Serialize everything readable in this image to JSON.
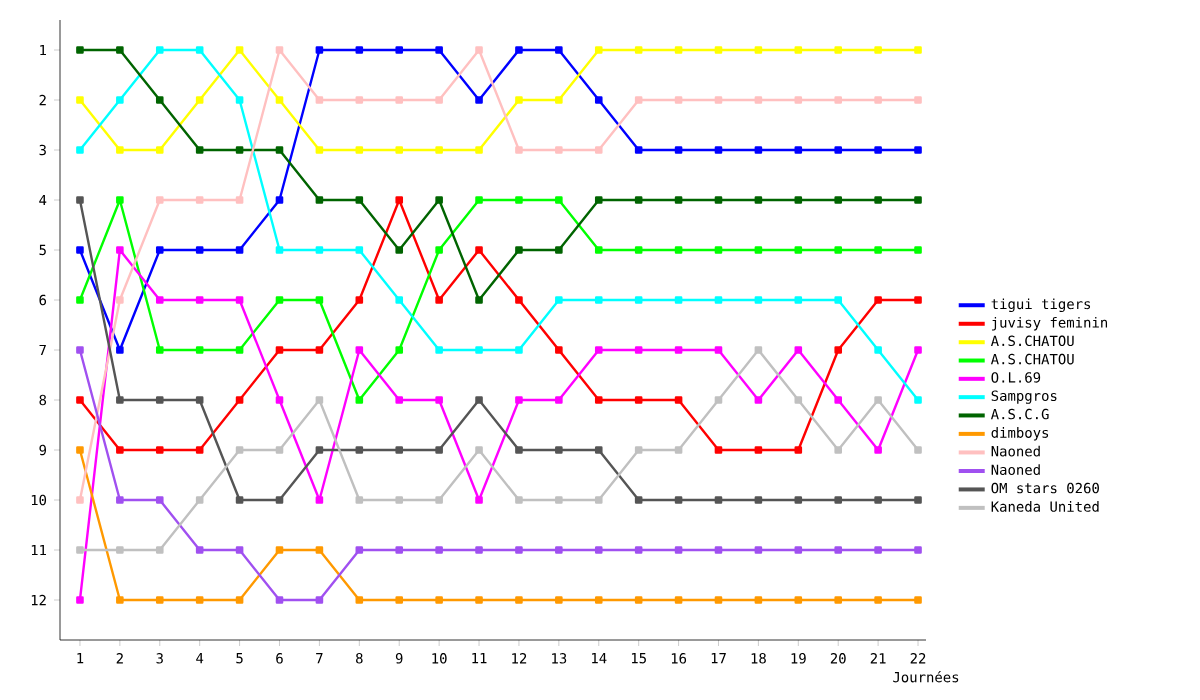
{
  "chart_data": {
    "type": "line",
    "xlabel": "Journées",
    "x": [
      1,
      2,
      3,
      4,
      5,
      6,
      7,
      8,
      9,
      10,
      11,
      12,
      13,
      14,
      15,
      16,
      17,
      18,
      19,
      20,
      21,
      22
    ],
    "xlim": [
      0.5,
      22.2
    ],
    "ylim": [
      12.8,
      0.4
    ],
    "xticks": [
      1,
      2,
      3,
      4,
      5,
      6,
      7,
      8,
      9,
      10,
      11,
      12,
      13,
      14,
      15,
      16,
      17,
      18,
      19,
      20,
      21,
      22
    ],
    "yticks": [
      1,
      2,
      3,
      4,
      5,
      6,
      7,
      8,
      9,
      10,
      11,
      12
    ],
    "marker": "square",
    "line_style": "solid",
    "legend": "right",
    "grid": false,
    "series": [
      {
        "name": "tigui tigers",
        "color": "#0000ff",
        "values": [
          5,
          7,
          5,
          5,
          5,
          4,
          1,
          1,
          1,
          1,
          2,
          1,
          1,
          2,
          3,
          3,
          3,
          3,
          3,
          3,
          3,
          3
        ]
      },
      {
        "name": "juvisy feminin",
        "color": "#ff0000",
        "values": [
          8,
          9,
          9,
          9,
          8,
          7,
          7,
          6,
          4,
          6,
          5,
          6,
          7,
          8,
          8,
          8,
          9,
          9,
          9,
          7,
          6,
          6
        ]
      },
      {
        "name": "A.S.CHATOU",
        "color": "#ffff00",
        "values": [
          2,
          3,
          3,
          2,
          1,
          2,
          3,
          3,
          3,
          3,
          3,
          2,
          2,
          1,
          1,
          1,
          1,
          1,
          1,
          1,
          1,
          1
        ]
      },
      {
        "name": "A.S.CHATOU",
        "color": "#00ff00",
        "values": [
          6,
          4,
          7,
          7,
          7,
          6,
          6,
          8,
          7,
          5,
          4,
          4,
          4,
          5,
          5,
          5,
          5,
          5,
          5,
          5,
          5,
          5
        ]
      },
      {
        "name": "O.L.69",
        "color": "#ff00ff",
        "values": [
          12,
          5,
          6,
          6,
          6,
          8,
          10,
          7,
          8,
          8,
          10,
          8,
          8,
          7,
          7,
          7,
          7,
          8,
          7,
          8,
          9,
          7
        ]
      },
      {
        "name": "Sampgros",
        "color": "#00ffff",
        "values": [
          3,
          2,
          1,
          1,
          2,
          5,
          5,
          5,
          6,
          7,
          7,
          7,
          6,
          6,
          6,
          6,
          6,
          6,
          6,
          6,
          7,
          8
        ]
      },
      {
        "name": "A.S.C.G",
        "color": "#006400",
        "values": [
          1,
          1,
          2,
          3,
          3,
          3,
          4,
          4,
          5,
          4,
          6,
          5,
          5,
          4,
          4,
          4,
          4,
          4,
          4,
          4,
          4,
          4
        ]
      },
      {
        "name": "dimboys",
        "color": "#ff9900",
        "values": [
          9,
          12,
          12,
          12,
          12,
          11,
          11,
          12,
          12,
          12,
          12,
          12,
          12,
          12,
          12,
          12,
          12,
          12,
          12,
          12,
          12,
          12
        ]
      },
      {
        "name": "Naoned",
        "color": "#ffc0c0",
        "values": [
          10,
          6,
          4,
          4,
          4,
          1,
          2,
          2,
          2,
          2,
          1,
          3,
          3,
          3,
          2,
          2,
          2,
          2,
          2,
          2,
          2,
          2
        ]
      },
      {
        "name": "Naoned",
        "color": "#a050f0",
        "values": [
          7,
          10,
          10,
          11,
          11,
          12,
          12,
          11,
          11,
          11,
          11,
          11,
          11,
          11,
          11,
          11,
          11,
          11,
          11,
          11,
          11,
          11
        ]
      },
      {
        "name": "OM stars 0260",
        "color": "#555555",
        "values": [
          4,
          8,
          8,
          8,
          10,
          10,
          9,
          9,
          9,
          9,
          8,
          9,
          9,
          9,
          10,
          10,
          10,
          10,
          10,
          10,
          10,
          10
        ]
      },
      {
        "name": "Kaneda United",
        "color": "#c0c0c0",
        "values": [
          11,
          11,
          11,
          10,
          9,
          9,
          8,
          10,
          10,
          10,
          9,
          10,
          10,
          10,
          9,
          9,
          8,
          7,
          8,
          9,
          8,
          9
        ]
      }
    ]
  }
}
